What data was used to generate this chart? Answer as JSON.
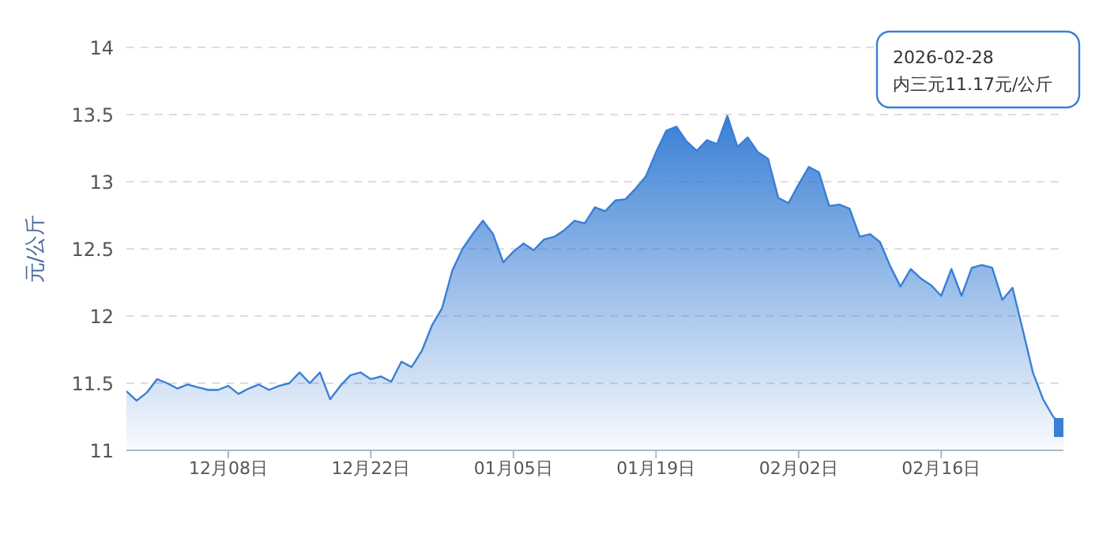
{
  "chart_data": {
    "type": "area",
    "ylabel": "元/公斤",
    "x": [
      "2025-11-28",
      "2025-11-29",
      "2025-11-30",
      "2025-12-01",
      "2025-12-02",
      "2025-12-03",
      "2025-12-04",
      "2025-12-05",
      "2025-12-06",
      "2025-12-07",
      "2025-12-08",
      "2025-12-09",
      "2025-12-10",
      "2025-12-11",
      "2025-12-12",
      "2025-12-13",
      "2025-12-14",
      "2025-12-15",
      "2025-12-16",
      "2025-12-17",
      "2025-12-18",
      "2025-12-19",
      "2025-12-20",
      "2025-12-21",
      "2025-12-22",
      "2025-12-23",
      "2025-12-24",
      "2025-12-25",
      "2025-12-26",
      "2025-12-27",
      "2025-12-28",
      "2025-12-29",
      "2025-12-30",
      "2025-12-31",
      "2026-01-01",
      "2026-01-02",
      "2026-01-03",
      "2026-01-04",
      "2026-01-05",
      "2026-01-06",
      "2026-01-07",
      "2026-01-08",
      "2026-01-09",
      "2026-01-10",
      "2026-01-11",
      "2026-01-12",
      "2026-01-13",
      "2026-01-14",
      "2026-01-15",
      "2026-01-16",
      "2026-01-17",
      "2026-01-18",
      "2026-01-19",
      "2026-01-20",
      "2026-01-21",
      "2026-01-22",
      "2026-01-23",
      "2026-01-24",
      "2026-01-25",
      "2026-01-26",
      "2026-01-27",
      "2026-01-28",
      "2026-01-29",
      "2026-01-30",
      "2026-01-31",
      "2026-02-01",
      "2026-02-02",
      "2026-02-03",
      "2026-02-04",
      "2026-02-05",
      "2026-02-06",
      "2026-02-07",
      "2026-02-08",
      "2026-02-09",
      "2026-02-10",
      "2026-02-11",
      "2026-02-12",
      "2026-02-13",
      "2026-02-14",
      "2026-02-15",
      "2026-02-16",
      "2026-02-17",
      "2026-02-18",
      "2026-02-19",
      "2026-02-20",
      "2026-02-21",
      "2026-02-22",
      "2026-02-23",
      "2026-02-24",
      "2026-02-25",
      "2026-02-26",
      "2026-02-27",
      "2026-02-28"
    ],
    "series": [
      {
        "color": "#3a7fd5",
        "values": [
          11.44,
          11.37,
          11.43,
          11.53,
          11.5,
          11.46,
          11.49,
          11.47,
          11.45,
          11.45,
          11.48,
          11.42,
          11.46,
          11.49,
          11.45,
          11.48,
          11.5,
          11.58,
          11.5,
          11.58,
          11.38,
          11.48,
          11.56,
          11.58,
          11.53,
          11.55,
          11.51,
          11.66,
          11.62,
          11.74,
          11.93,
          12.06,
          12.34,
          12.5,
          12.61,
          12.71,
          12.61,
          12.4,
          12.48,
          12.54,
          12.49,
          12.57,
          12.59,
          12.64,
          12.71,
          12.69,
          12.81,
          12.78,
          12.86,
          12.87,
          12.95,
          13.04,
          13.22,
          13.38,
          13.41,
          13.3,
          13.23,
          13.31,
          13.28,
          13.49,
          13.26,
          13.33,
          13.22,
          13.17,
          12.88,
          12.84,
          12.98,
          13.11,
          13.07,
          12.82,
          12.83,
          12.8,
          12.59,
          12.61,
          12.55,
          12.37,
          12.22,
          12.35,
          12.28,
          12.23,
          12.15,
          12.35,
          12.15,
          12.36,
          12.38,
          12.36,
          12.12,
          12.21,
          11.9,
          11.58,
          11.38,
          11.25,
          11.17
        ]
      },
      {
        "type": "scatter",
        "marker": "square",
        "color": "#3a7fd5",
        "x": [
          "2026-02-28"
        ],
        "values": [
          11.17
        ]
      }
    ],
    "xlim": [
      "2025-11-28",
      "2026-02-28"
    ],
    "xticks": [
      {
        "value": "2025-12-08",
        "label": "12月08日"
      },
      {
        "value": "2025-12-22",
        "label": "12月22日"
      },
      {
        "value": "2026-01-05",
        "label": "01月05日"
      },
      {
        "value": "2026-01-19",
        "label": "01月19日"
      },
      {
        "value": "2026-02-02",
        "label": "02月02日"
      },
      {
        "value": "2026-02-16",
        "label": "02月16日"
      }
    ],
    "ylim": [
      11,
      14
    ],
    "yticks": [
      11,
      11.5,
      12,
      12.5,
      13,
      13.5,
      14
    ],
    "grid": "y",
    "line_style": "solid",
    "marker": "none",
    "annotations": [
      "2026-02-28\n内三元11.17元/公斤"
    ]
  }
}
